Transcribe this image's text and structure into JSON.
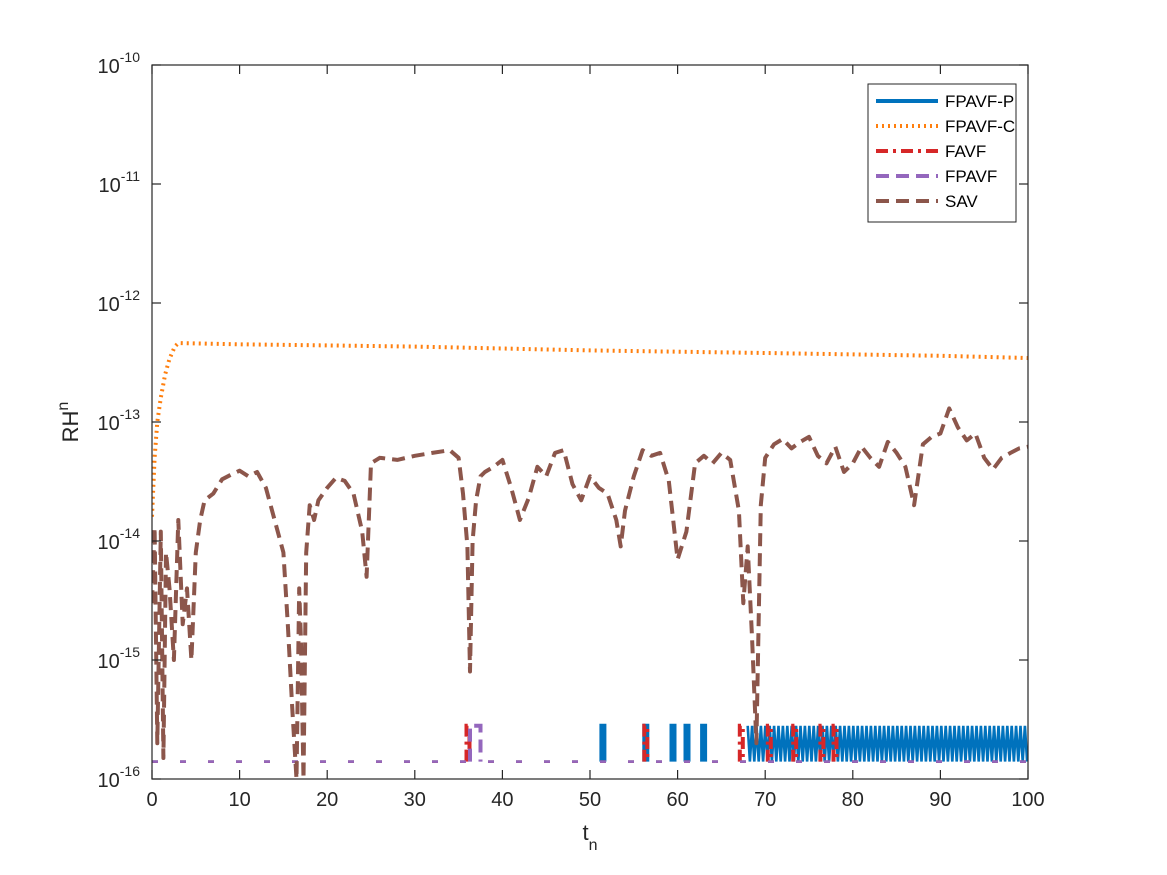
{
  "chart_data": {
    "type": "line",
    "xlabel": "t",
    "xlabel_sub": "n",
    "ylabel": "RH",
    "ylabel_sup": "n",
    "xlim": [
      0,
      100
    ],
    "ylim_log10": [
      -16,
      -10
    ],
    "yscale": "log",
    "grid": false,
    "legend_location": "top-right",
    "x_ticks": [
      0,
      10,
      20,
      30,
      40,
      50,
      60,
      70,
      80,
      90,
      100
    ],
    "x_tick_labels": [
      "0",
      "10",
      "20",
      "30",
      "40",
      "50",
      "60",
      "70",
      "80",
      "90",
      "100"
    ],
    "y_tick_exponents": [
      -16,
      -15,
      -14,
      -13,
      -12,
      -11,
      -10
    ],
    "y_tick_base": "10",
    "y_tick_labels": [
      "-16",
      "-15",
      "-14",
      "-13",
      "-12",
      "-11",
      "-10"
    ],
    "series": [
      {
        "name": "FPAVF-P",
        "color": "#0072bd",
        "style": "solid",
        "description": "machine-precision level, mostly ~1.4e-16 with spikes to ~2.8e-16",
        "spike_ranges": [
          [
            51.3,
            51.5
          ],
          [
            56.2,
            56.4
          ],
          [
            59.3,
            59.5
          ],
          [
            60.9,
            61.1
          ],
          [
            62.8,
            63.0
          ],
          [
            68.0,
            100.0
          ]
        ],
        "base_value": 1.4e-16,
        "spike_value": 2.8e-16
      },
      {
        "name": "FPAVF-C",
        "color": "#ff7f0e",
        "style": "dotted",
        "x": [
          0,
          0.3,
          0.6,
          1.0,
          1.5,
          2.0,
          2.6,
          3.0,
          10,
          20,
          30,
          40,
          50,
          60,
          70,
          80,
          90,
          100
        ],
        "y": [
          1.6e-14,
          5e-14,
          1e-13,
          1.6e-13,
          2.5e-13,
          3.4e-13,
          4.3e-13,
          4.6e-13,
          4.5e-13,
          4.4e-13,
          4.3e-13,
          4.15e-13,
          4e-13,
          3.9e-13,
          3.8e-13,
          3.7e-13,
          3.6e-13,
          3.45e-13
        ]
      },
      {
        "name": "FAVF",
        "color": "#d62728",
        "style": "dashdot",
        "description": "machine-precision level, mostly ~1.4e-16 with sparse spikes to ~2.8e-16",
        "spike_ranges": [
          [
            35.9,
            36.0
          ],
          [
            56.2,
            56.3
          ],
          [
            67.1,
            67.2
          ],
          [
            70.3,
            70.4
          ],
          [
            73.2,
            73.3
          ],
          [
            76.3,
            76.4
          ],
          [
            77.8,
            77.9
          ]
        ],
        "base_value": 1.4e-16,
        "spike_value": 2.8e-16
      },
      {
        "name": "FPAVF",
        "color": "#9467bd",
        "style": "dashed",
        "description": "machine-precision level, mostly ~1.4e-16 with spikes to ~2.8e-16",
        "spike_ranges": [
          [
            36.3,
            37.5
          ]
        ],
        "base_value": 1.4e-16,
        "spike_value": 2.8e-16
      },
      {
        "name": "SAV",
        "color": "#8c564b",
        "style": "dashed",
        "x": [
          0,
          0.3,
          0.6,
          1.0,
          1.3,
          1.6,
          2.0,
          2.5,
          3.0,
          3.5,
          4.0,
          4.5,
          5.0,
          5.5,
          6.0,
          7.0,
          8.0,
          9.0,
          10.0,
          11.0,
          12.0,
          13.0,
          14.0,
          15.0,
          15.5,
          16.0,
          16.5,
          16.8,
          17.0,
          17.3,
          17.6,
          18.0,
          18.5,
          19.0,
          20.0,
          21.0,
          22.0,
          23.0,
          24.0,
          24.5,
          25.0,
          26.0,
          28.0,
          30.0,
          32.0,
          34.0,
          35.0,
          35.5,
          36.0,
          36.3,
          36.6,
          37.0,
          37.5,
          38.0,
          39.0,
          40.0,
          41.0,
          42.0,
          43.0,
          44.0,
          45.0,
          46.0,
          47.0,
          48.0,
          49.0,
          50.0,
          51.0,
          52.0,
          53.0,
          53.5,
          54.0,
          55.0,
          56.0,
          57.0,
          58.0,
          59.0,
          60.0,
          61.0,
          62.0,
          63.0,
          64.0,
          65.0,
          66.0,
          67.0,
          67.5,
          68.0,
          68.5,
          69.0,
          69.5,
          70.0,
          71.0,
          72.0,
          73.0,
          74.0,
          75.0,
          76.0,
          77.0,
          78.0,
          79.0,
          80.0,
          81.0,
          82.0,
          83.0,
          84.0,
          85.0,
          86.0,
          87.0,
          88.0,
          89.0,
          90.0,
          91.0,
          92.0,
          93.0,
          94.0,
          95.0,
          96.0,
          97.0,
          98.0,
          99.0,
          100.0
        ],
        "y": [
          3e-15,
          1.3e-14,
          2e-16,
          1.2e-14,
          1.5e-16,
          8e-15,
          4e-15,
          1e-15,
          1.5e-14,
          2e-15,
          4e-15,
          1e-15,
          8e-15,
          1.5e-14,
          2.2e-14,
          2.5e-14,
          3.3e-14,
          3.6e-14,
          3.9e-14,
          3.5e-14,
          3.8e-14,
          2.8e-14,
          1.5e-14,
          8e-15,
          2e-15,
          4e-16,
          1e-16,
          4e-15,
          1.5e-15,
          8e-17,
          8e-15,
          2e-14,
          1.5e-14,
          2.2e-14,
          2.8e-14,
          3.4e-14,
          3.2e-14,
          2.5e-14,
          1.2e-14,
          5e-15,
          4.5e-14,
          5e-14,
          4.8e-14,
          5.2e-14,
          5.5e-14,
          5.8e-14,
          5e-14,
          2.5e-14,
          9e-15,
          8e-16,
          1e-14,
          2.2e-14,
          3.5e-14,
          3.8e-14,
          4.2e-14,
          4.8e-14,
          2.8e-14,
          1.5e-14,
          2.3e-14,
          4.2e-14,
          3.5e-14,
          5.5e-14,
          5.8e-14,
          3e-14,
          2.2e-14,
          3.5e-14,
          2.8e-14,
          2.5e-14,
          1.5e-14,
          9e-15,
          1.8e-14,
          3.5e-14,
          5.8e-14,
          5.2e-14,
          5.5e-14,
          3.2e-14,
          7e-15,
          1.2e-14,
          4.5e-14,
          5.2e-14,
          4.5e-14,
          5.5e-14,
          4.8e-14,
          1.8e-14,
          3e-15,
          9e-15,
          1.5e-15,
          2e-16,
          2e-14,
          5e-14,
          6.5e-14,
          7.2e-14,
          6e-14,
          6.8e-14,
          7.5e-14,
          5.2e-14,
          4.5e-14,
          6.2e-14,
          3.8e-14,
          4.5e-14,
          6.2e-14,
          5e-14,
          4.2e-14,
          6.8e-14,
          5.5e-14,
          4.2e-14,
          2e-14,
          6.5e-14,
          7.5e-14,
          8e-14,
          1.3e-13,
          9e-14,
          7e-14,
          8e-14,
          5e-14,
          4e-14,
          5e-14,
          5.5e-14,
          6e-14,
          6.2e-14
        ]
      }
    ]
  }
}
